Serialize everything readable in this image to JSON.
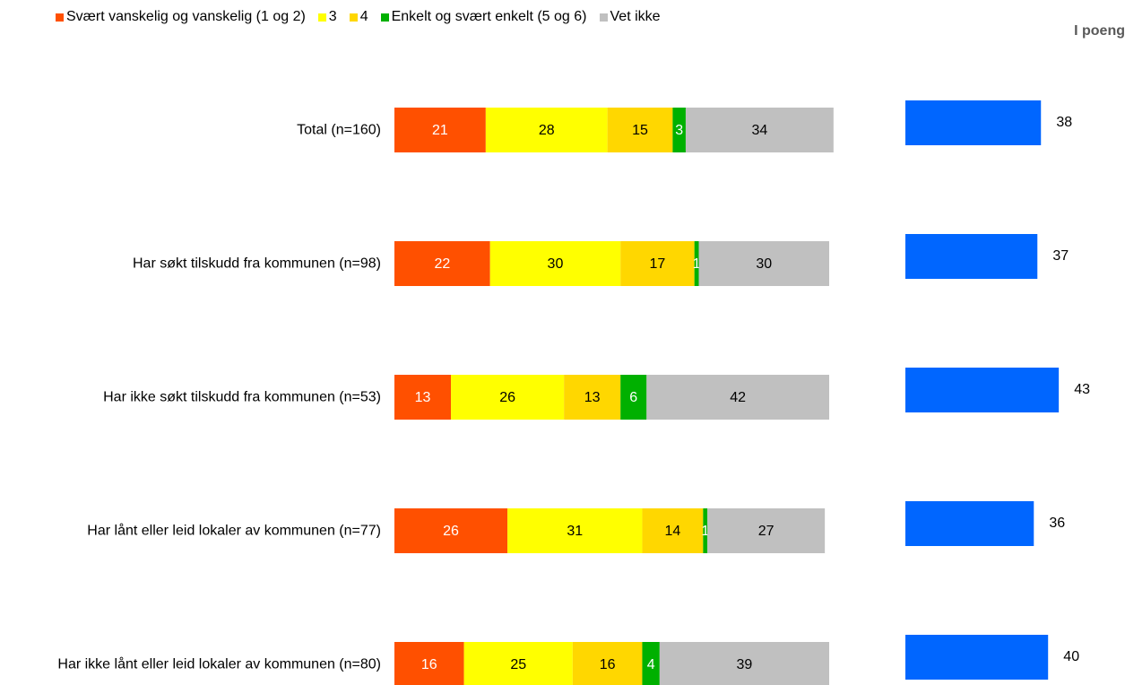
{
  "chart_data": [
    {
      "type": "stacked_bar",
      "categories": [
        "Total (n=160)",
        "Har søkt tilskudd fra kommunen (n=98)",
        "Har ikke søkt tilskudd fra kommunen (n=53)",
        "Har lånt eller leid lokaler av kommunen (n=77)",
        "Har ikke lånt eller leid lokaler av kommunen (n=80)"
      ],
      "series": [
        {
          "name": "Svært vanskelig og vanskelig (1 og 2)",
          "color": "#ff5000",
          "values": [
            21,
            22,
            13,
            26,
            16
          ]
        },
        {
          "name": "3",
          "color": "#ffff00",
          "values": [
            28,
            30,
            26,
            31,
            25
          ]
        },
        {
          "name": "4",
          "color": "#ffd700",
          "values": [
            15,
            17,
            13,
            14,
            16
          ]
        },
        {
          "name": "Enkelt og svært enkelt (5 og 6)",
          "color": "#00b000",
          "values": [
            3,
            1,
            6,
            1,
            4
          ]
        },
        {
          "name": "Vet ikke",
          "color": "#c0c0c0",
          "values": [
            34,
            30,
            42,
            27,
            39
          ]
        }
      ]
    },
    {
      "type": "bar",
      "title": "I poeng",
      "color": "#0066ff",
      "values": [
        38,
        37,
        43,
        36,
        40
      ]
    }
  ]
}
